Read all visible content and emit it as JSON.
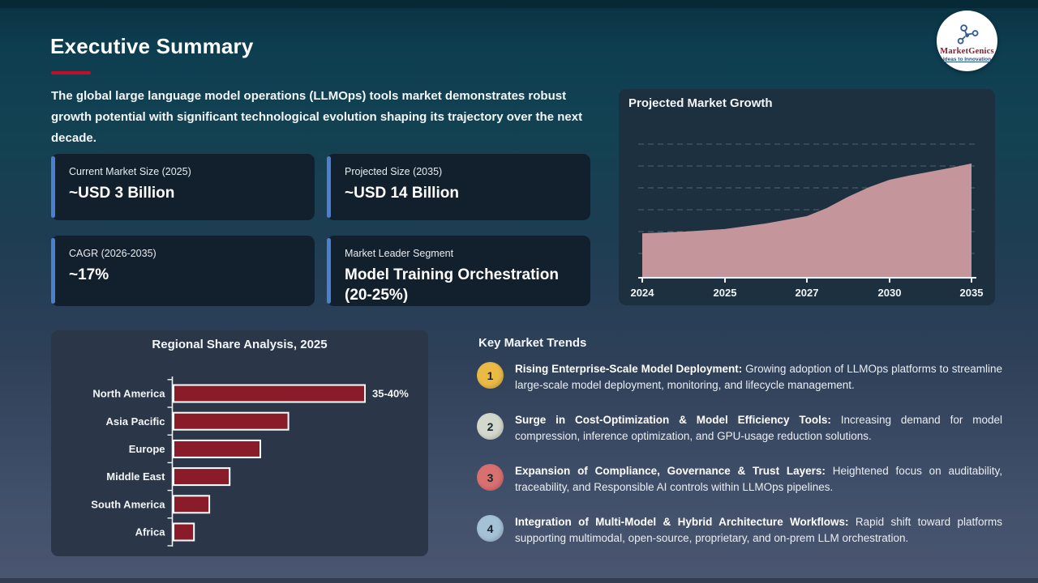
{
  "slide": {
    "title": "Executive Summary",
    "intro": "The global large language model operations (LLMOps) tools market demonstrates robust growth potential with significant technological evolution shaping its trajectory over the next decade."
  },
  "logo": {
    "name": "MarketGenics",
    "tagline": "Ideas to Innovation"
  },
  "colors": {
    "title_underline": "#c01025",
    "card_accent": "#4b7fd0",
    "area_fill": "#c4969c",
    "bar_fill": "#8a1c29"
  },
  "stat_cards": [
    {
      "label": "Current Market Size (2025)",
      "value": "~USD 3 Billion"
    },
    {
      "label": "Projected Size (2035)",
      "value": "~USD 14 Billion"
    },
    {
      "label": "CAGR (2026-2035)",
      "value": "~17%"
    },
    {
      "label": "Market Leader Segment",
      "value": "Model Training Orchestration (20-25%)"
    }
  ],
  "chart_data": [
    {
      "id": "projected_market_growth",
      "type": "area",
      "title": "Projected Market Growth",
      "x": [
        "2024",
        "2025",
        "2027",
        "2030",
        "2035"
      ],
      "values_est_usd_billion": [
        2.6,
        3.0,
        4.2,
        8.5,
        14.0
      ],
      "ylabel": "",
      "xlabel": "",
      "grid": "horizontal-dashed",
      "legend": false,
      "area_color": "#c4969c",
      "render_profile": [
        [
          0,
          0.333
        ],
        [
          0.125,
          0.345
        ],
        [
          0.25,
          0.364
        ],
        [
          0.375,
          0.406
        ],
        [
          0.5,
          0.461
        ],
        [
          0.56,
          0.521
        ],
        [
          0.625,
          0.606
        ],
        [
          0.69,
          0.679
        ],
        [
          0.75,
          0.733
        ],
        [
          0.81,
          0.764
        ],
        [
          0.875,
          0.794
        ],
        [
          0.94,
          0.824
        ],
        [
          1,
          0.855
        ]
      ]
    },
    {
      "id": "regional_share_analysis",
      "type": "bar",
      "orientation": "horizontal",
      "title": "Regional Share Analysis, 2025",
      "categories": [
        "North America",
        "Asia Pacific",
        "Europe",
        "Middle East",
        "South America",
        "Africa"
      ],
      "values_est_pct": [
        37.5,
        22.5,
        17,
        11,
        7,
        4
      ],
      "value_label": {
        "category": "North America",
        "text": "35-40%"
      },
      "bar_color": "#8a1c29",
      "bar_border": "#ffffff",
      "legend": false
    }
  ],
  "trends": {
    "heading": "Key Market Trends",
    "items": [
      {
        "num": "1",
        "color": "#eaba45",
        "title": "Rising Enterprise-Scale Model Deployment:",
        "body": "Growing adoption of LLMOps platforms to streamline large-scale model deployment, monitoring, and lifecycle management."
      },
      {
        "num": "2",
        "color": "#d3d8cc",
        "title": "Surge in Cost-Optimization & Model Efficiency Tools:",
        "body": "Increasing demand for model compression, inference optimization, and GPU-usage reduction solutions."
      },
      {
        "num": "3",
        "color": "#d97070",
        "title": "Expansion of Compliance, Governance & Trust Layers:",
        "body": "Heightened focus on auditability, traceability, and Responsible AI controls within LLMOps pipelines."
      },
      {
        "num": "4",
        "color": "#a5c1d6",
        "title": "Integration of Multi-Model & Hybrid Architecture Workflows:",
        "body": "Rapid shift toward platforms supporting multimodal, open-source, proprietary, and on-prem LLM orchestration."
      }
    ]
  }
}
